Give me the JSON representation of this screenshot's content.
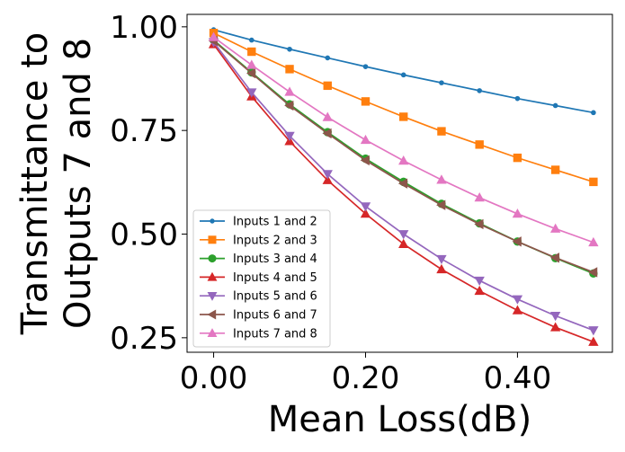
{
  "chart_data": {
    "type": "line",
    "title": "",
    "xlabel": "Mean Loss(dB)",
    "ylabel_lines": [
      "Transmittance to",
      "Outputs 7 and 8"
    ],
    "xlim": [
      -0.035,
      0.525
    ],
    "ylim": [
      0.215,
      1.03
    ],
    "xticks": [
      0.0,
      0.2,
      0.4
    ],
    "xtick_labels": [
      "0.00",
      "0.20",
      "0.40"
    ],
    "yticks": [
      0.25,
      0.5,
      0.75,
      1.0
    ],
    "ytick_labels": [
      "0.25",
      "0.50",
      "0.75",
      "1.00"
    ],
    "grid": false,
    "legend_position": "lower-left",
    "x": [
      0.0,
      0.05,
      0.1,
      0.15,
      0.2,
      0.25,
      0.3,
      0.35,
      0.4,
      0.45,
      0.5
    ],
    "series": [
      {
        "name": "Inputs 1 and 2",
        "color": "#1f77b4",
        "marker": "point",
        "values": [
          0.993,
          0.968,
          0.946,
          0.925,
          0.904,
          0.884,
          0.865,
          0.846,
          0.827,
          0.81,
          0.793
        ]
      },
      {
        "name": "Inputs 2 and 3",
        "color": "#ff7f0e",
        "marker": "square",
        "values": [
          0.985,
          0.94,
          0.898,
          0.858,
          0.82,
          0.783,
          0.748,
          0.716,
          0.684,
          0.655,
          0.626
        ]
      },
      {
        "name": "Inputs 3 and 4",
        "color": "#2ca02c",
        "marker": "circle",
        "values": [
          0.968,
          0.89,
          0.813,
          0.746,
          0.682,
          0.626,
          0.573,
          0.526,
          0.482,
          0.442,
          0.405
        ]
      },
      {
        "name": "Inputs 4 and 5",
        "color": "#d62728",
        "marker": "triangle-up",
        "values": [
          0.958,
          0.832,
          0.724,
          0.63,
          0.549,
          0.476,
          0.415,
          0.363,
          0.316,
          0.275,
          0.24
        ]
      },
      {
        "name": "Inputs 5 and 6",
        "color": "#9467bd",
        "marker": "triangle-down",
        "values": [
          0.963,
          0.842,
          0.737,
          0.645,
          0.567,
          0.5,
          0.44,
          0.388,
          0.343,
          0.303,
          0.268
        ]
      },
      {
        "name": "Inputs 6 and 7",
        "color": "#8c564b",
        "marker": "triangle-left",
        "values": [
          0.966,
          0.888,
          0.81,
          0.743,
          0.678,
          0.622,
          0.57,
          0.524,
          0.482,
          0.443,
          0.408
        ]
      },
      {
        "name": "Inputs 7 and 8",
        "color": "#e377c2",
        "marker": "triangle-up",
        "values": [
          0.975,
          0.908,
          0.843,
          0.782,
          0.727,
          0.677,
          0.631,
          0.588,
          0.549,
          0.513,
          0.48
        ]
      }
    ]
  }
}
